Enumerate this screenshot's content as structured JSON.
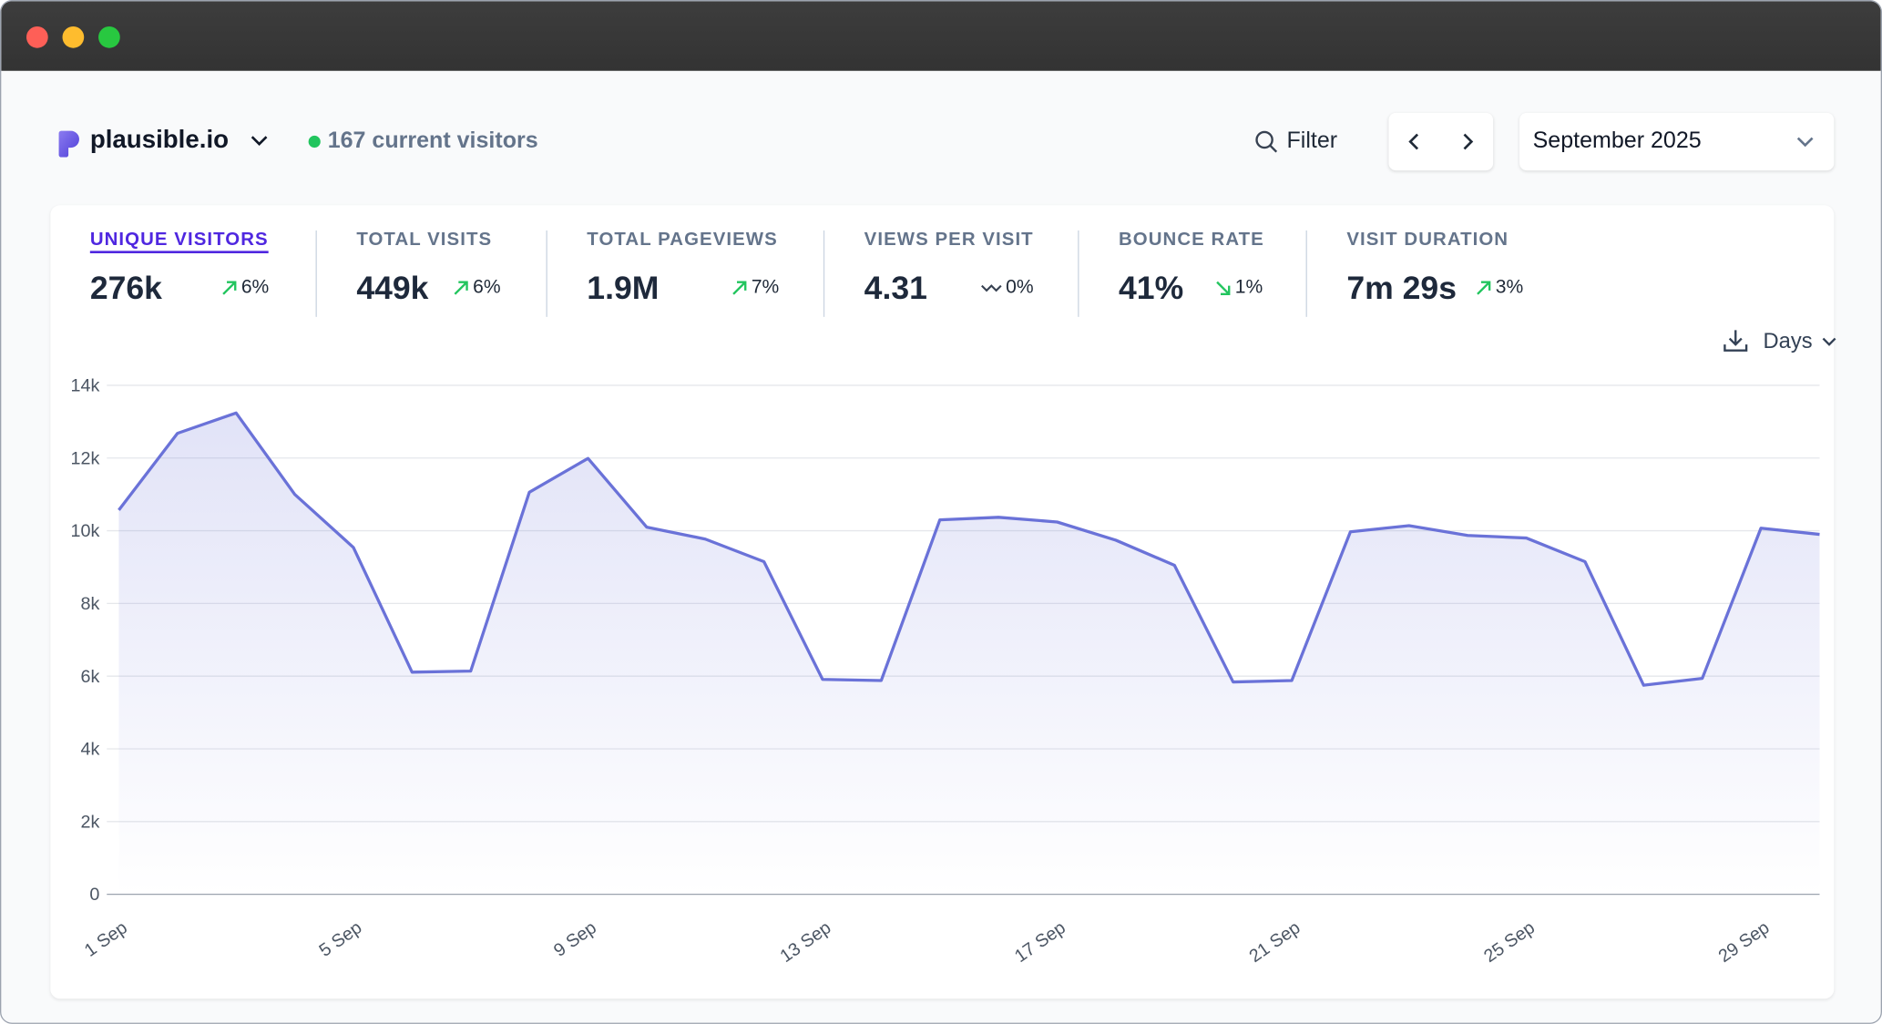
{
  "header": {
    "site_name": "plausible.io",
    "current_visitors": "167 current visitors",
    "filter_label": "Filter",
    "period": "September 2025"
  },
  "metrics": [
    {
      "label": "UNIQUE VISITORS",
      "value": "276k",
      "change": "6%",
      "trend": "up"
    },
    {
      "label": "TOTAL VISITS",
      "value": "449k",
      "change": "6%",
      "trend": "up"
    },
    {
      "label": "TOTAL PAGEVIEWS",
      "value": "1.9M",
      "change": "7%",
      "trend": "up"
    },
    {
      "label": "VIEWS PER VISIT",
      "value": "4.31",
      "change": "0%",
      "trend": "flat"
    },
    {
      "label": "BOUNCE RATE",
      "value": "41%",
      "change": "1%",
      "trend": "down"
    },
    {
      "label": "VISIT DURATION",
      "value": "7m 29s",
      "change": "3%",
      "trend": "up"
    }
  ],
  "interval_label": "Days",
  "colors": {
    "accent": "#4f27e0",
    "line": "#6a72d8",
    "positive": "#22c55e",
    "live": "#22c55e"
  },
  "chart_data": {
    "type": "area",
    "title": "",
    "xlabel": "",
    "ylabel": "",
    "x": [
      "1 Sep",
      "2 Sep",
      "3 Sep",
      "4 Sep",
      "5 Sep",
      "6 Sep",
      "7 Sep",
      "8 Sep",
      "9 Sep",
      "10 Sep",
      "11 Sep",
      "12 Sep",
      "13 Sep",
      "14 Sep",
      "15 Sep",
      "16 Sep",
      "17 Sep",
      "18 Sep",
      "19 Sep",
      "20 Sep",
      "21 Sep",
      "22 Sep",
      "23 Sep",
      "24 Sep",
      "25 Sep",
      "26 Sep",
      "27 Sep",
      "28 Sep",
      "29 Sep",
      "30 Sep"
    ],
    "x_tick_labels": [
      "1 Sep",
      "5 Sep",
      "9 Sep",
      "13 Sep",
      "17 Sep",
      "21 Sep",
      "25 Sep",
      "29 Sep"
    ],
    "series": [
      {
        "name": "Unique visitors",
        "values": [
          10570,
          12680,
          13240,
          11000,
          9540,
          6110,
          6140,
          11060,
          11990,
          10100,
          9770,
          9150,
          5910,
          5880,
          10300,
          10370,
          10240,
          9740,
          9050,
          5840,
          5880,
          9970,
          10140,
          9870,
          9800,
          9150,
          5750,
          5940,
          10070,
          9900
        ]
      }
    ],
    "ylim": [
      0,
      14000
    ],
    "y_ticks": [
      "0",
      "2k",
      "4k",
      "6k",
      "8k",
      "10k",
      "12k",
      "14k"
    ],
    "y_tick_values": [
      0,
      2000,
      4000,
      6000,
      8000,
      10000,
      12000,
      14000
    ],
    "grid": true
  }
}
